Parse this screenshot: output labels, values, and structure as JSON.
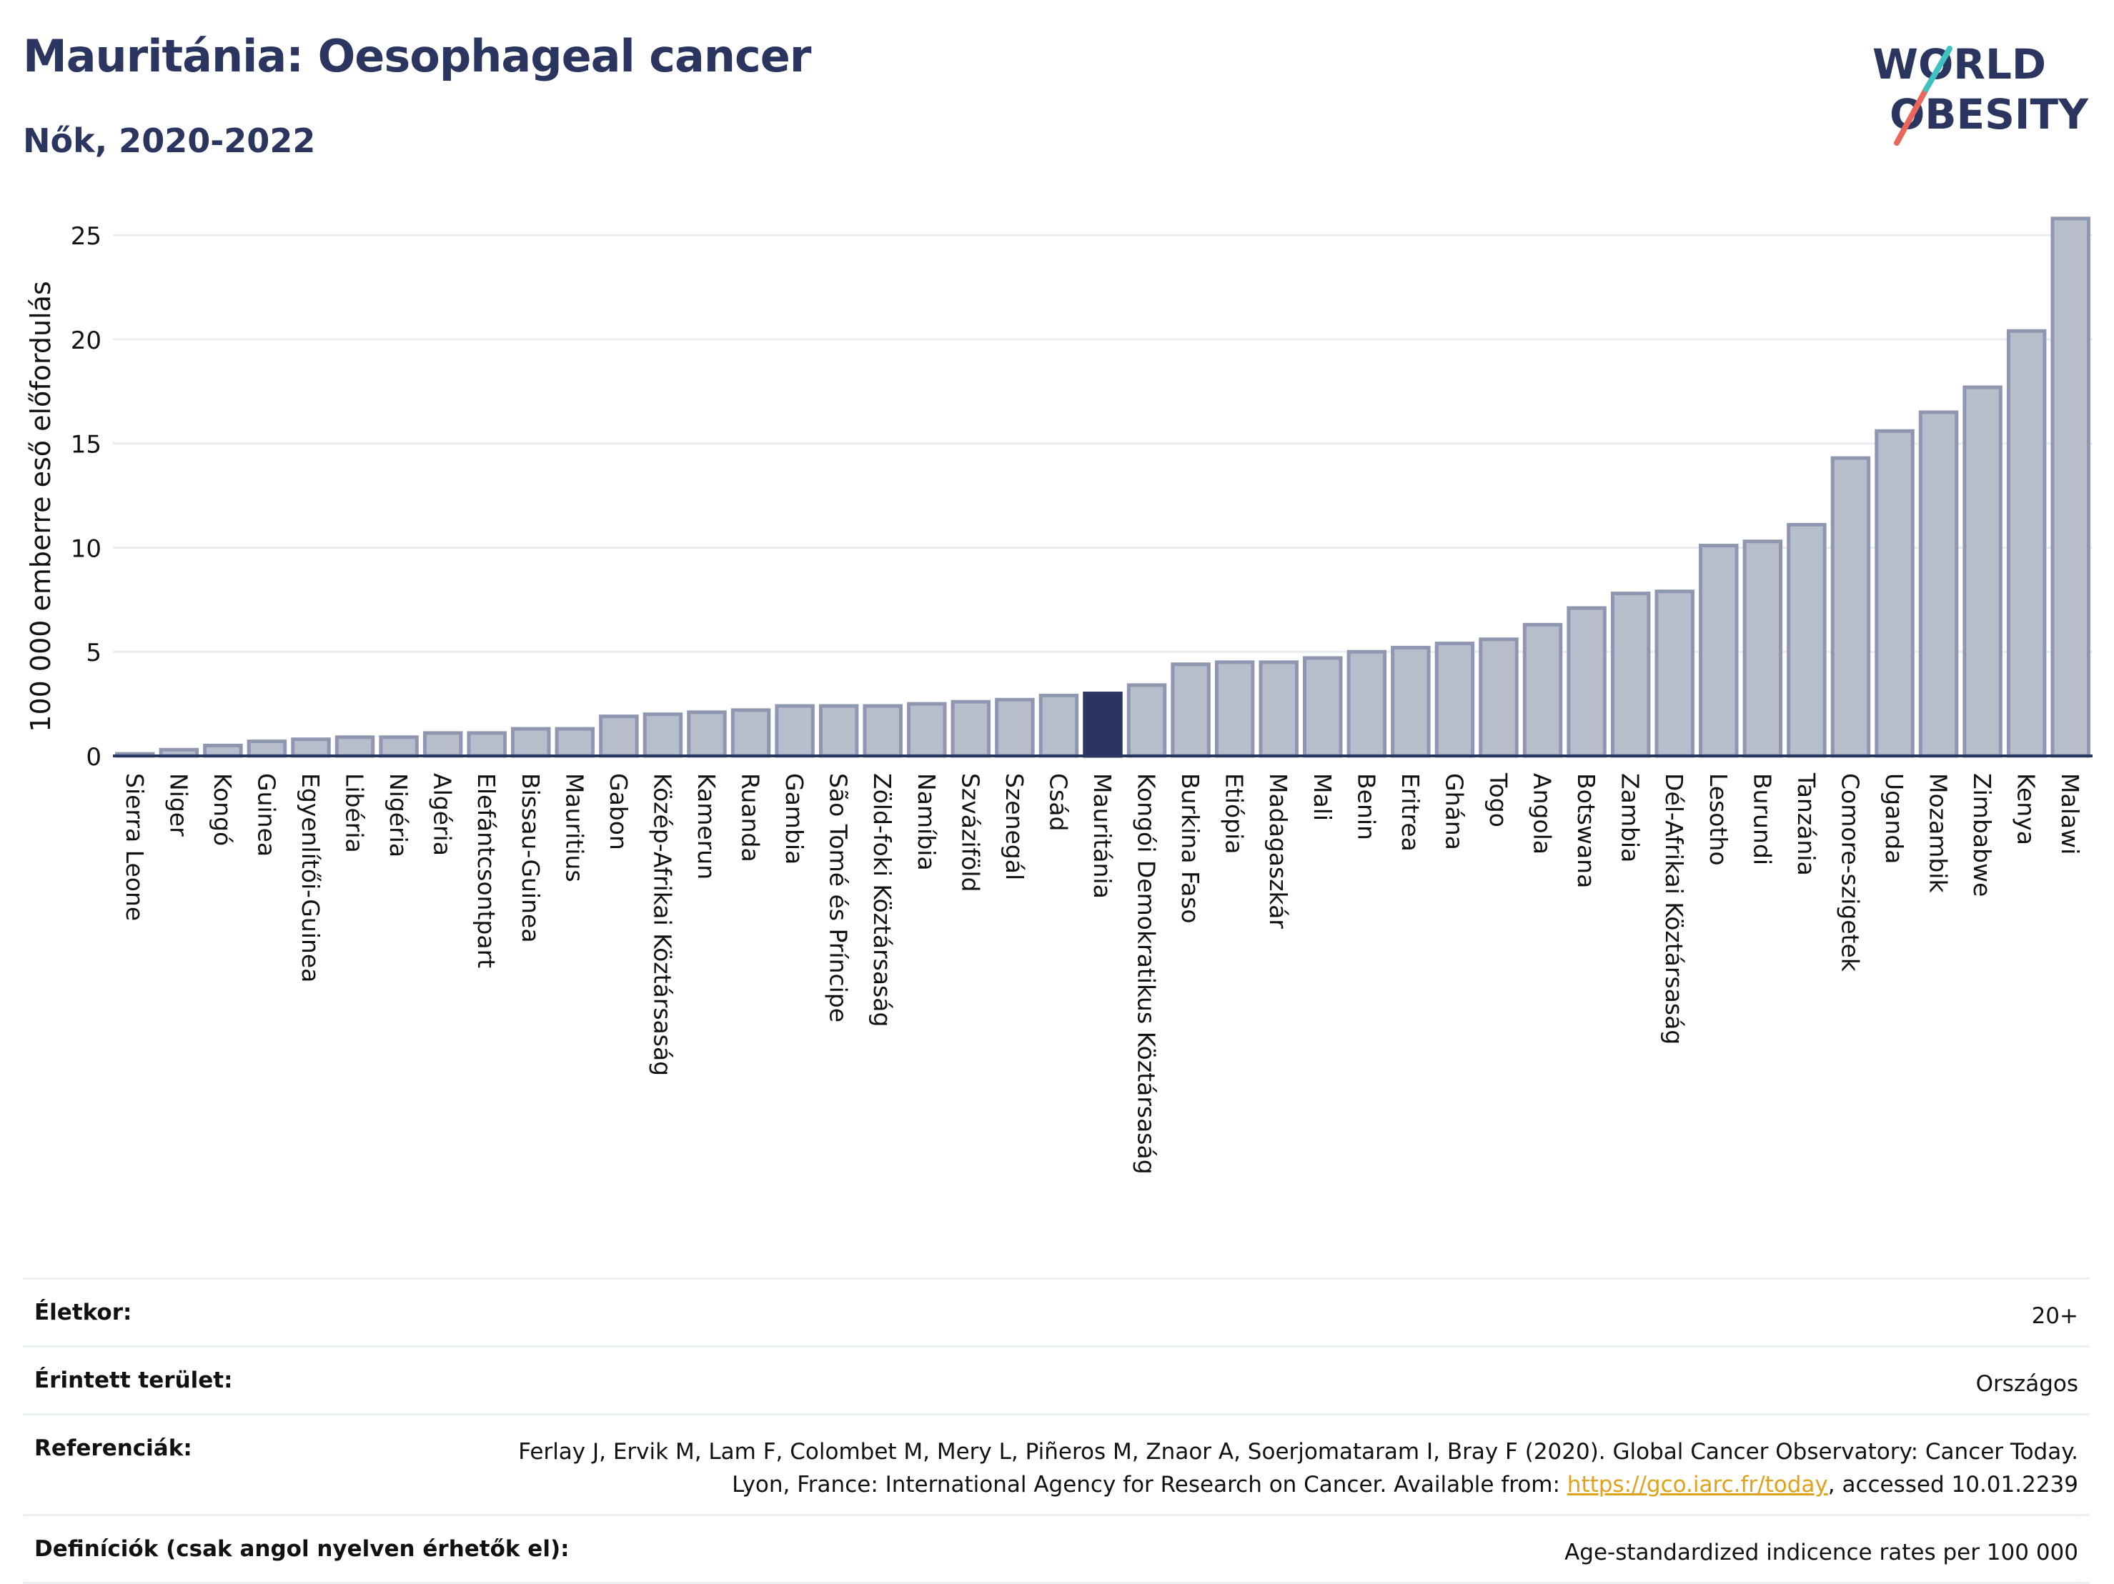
{
  "header": {
    "title": "Mauritánia: Oesophageal cancer",
    "subtitle": "Nők, 2020-2022"
  },
  "logo": {
    "line1": "WORLD",
    "line2": "OBESITY"
  },
  "colors": {
    "highlight": "#2a3560",
    "bar": "#b8bdcc",
    "bar_border": "#8f97b0",
    "accent_red": "#e8665a",
    "accent_teal": "#3fc1c0"
  },
  "chart_data": {
    "type": "bar",
    "ylabel": "100 000 emberre eső előfordulás",
    "ylim": [
      0,
      26
    ],
    "yticks": [
      0,
      5,
      10,
      15,
      20,
      25
    ],
    "highlight": "Mauritánia",
    "grid": true,
    "categories": [
      "Sierra Leone",
      "Niger",
      "Kongó",
      "Guinea",
      "Egyenlítői-Guinea",
      "Libéria",
      "Nigéria",
      "Algéria",
      "Elefántcsontpart",
      "Bissau-Guinea",
      "Mauritius",
      "Gabon",
      "Közép-Afrikai Köztársaság",
      "Kamerun",
      "Ruanda",
      "Gambia",
      "São Tomé és Príncipe",
      "Zöld-foki Köztársaság",
      "Namíbia",
      "Szváziföld",
      "Szenegál",
      "Csád",
      "Mauritánia",
      "Kongói Demokratikus Köztársaság",
      "Burkina Faso",
      "Etiópia",
      "Madagaszkár",
      "Mali",
      "Benin",
      "Eritrea",
      "Ghána",
      "Togo",
      "Angola",
      "Botswana",
      "Zambia",
      "Dél-Afrikai Köztársaság",
      "Lesotho",
      "Burundi",
      "Tanzánia",
      "Comore-szigetek",
      "Uganda",
      "Mozambik",
      "Zimbabwe",
      "Kenya",
      "Malawi"
    ],
    "values": [
      0.1,
      0.3,
      0.5,
      0.7,
      0.8,
      0.9,
      0.9,
      1.1,
      1.1,
      1.3,
      1.3,
      1.9,
      2.0,
      2.1,
      2.2,
      2.4,
      2.4,
      2.4,
      2.5,
      2.6,
      2.7,
      2.9,
      3.0,
      3.4,
      4.4,
      4.5,
      4.5,
      4.7,
      5.0,
      5.2,
      5.4,
      5.6,
      6.3,
      7.1,
      7.8,
      7.9,
      10.1,
      10.3,
      11.1,
      14.3,
      15.6,
      16.5,
      17.7,
      20.4,
      25.8
    ]
  },
  "info": {
    "age_label": "Életkor:",
    "age_value": "20+",
    "area_label": "Érintett terület:",
    "area_value": "Országos",
    "ref_label": "Referenciák:",
    "ref_text1": "Ferlay J, Ervik M, Lam F, Colombet M, Mery L, Piñeros M, Znaor A, Soerjomataram I, Bray F (2020). Global Cancer Observatory: Cancer Today. Lyon, France: International Agency for Research on Cancer. Available from: ",
    "ref_link": "https://gco.iarc.fr/today",
    "ref_text2": ", accessed 10.01.2239",
    "def_label": "Definíciók (csak angol nyelven érhetők el):",
    "def_value": "Age-standardized indicence rates per 100 000"
  }
}
